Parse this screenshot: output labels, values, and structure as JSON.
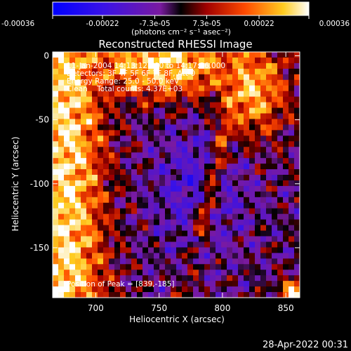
{
  "colorbar": {
    "tick_labels": [
      "-0.00036",
      "-0.00022",
      "-7.3e-05",
      "7.3e-05",
      "0.00022",
      "0.00036"
    ],
    "tick_values": [
      -0.00036,
      -0.00022,
      -7.3e-05,
      7.3e-05,
      0.00022,
      0.00036
    ],
    "unit_label": "(photons cm⁻² s⁻¹ asec⁻²)",
    "range": [
      -0.00036,
      0.00036
    ]
  },
  "chart_data": {
    "type": "heatmap",
    "title": "Reconstructed RHESSI Image",
    "xlabel": "Heliocentric X (arcsec)",
    "ylabel": "Heliocentric Y (arcsec)",
    "xlim": [
      666,
      861
    ],
    "ylim": [
      -189,
      3
    ],
    "x_ticks": [
      700,
      750,
      800,
      850
    ],
    "y_ticks": [
      0,
      -50,
      -100,
      -150
    ],
    "annotations": [
      "11-Jan-2004 14:13:12.000 to 14:17:56.000",
      "Detectors: 3F 4F 5F 6F 7F 8F, Att 0",
      "Energy Range: 25.0 - 50.0 keV",
      "Clean    Total counts: 4.37E+03"
    ],
    "peak_label": "Position of Peak = [839,-185]",
    "peak_position": [
      839,
      -185
    ]
  },
  "timestamp": "28-Apr-2022 00:31"
}
